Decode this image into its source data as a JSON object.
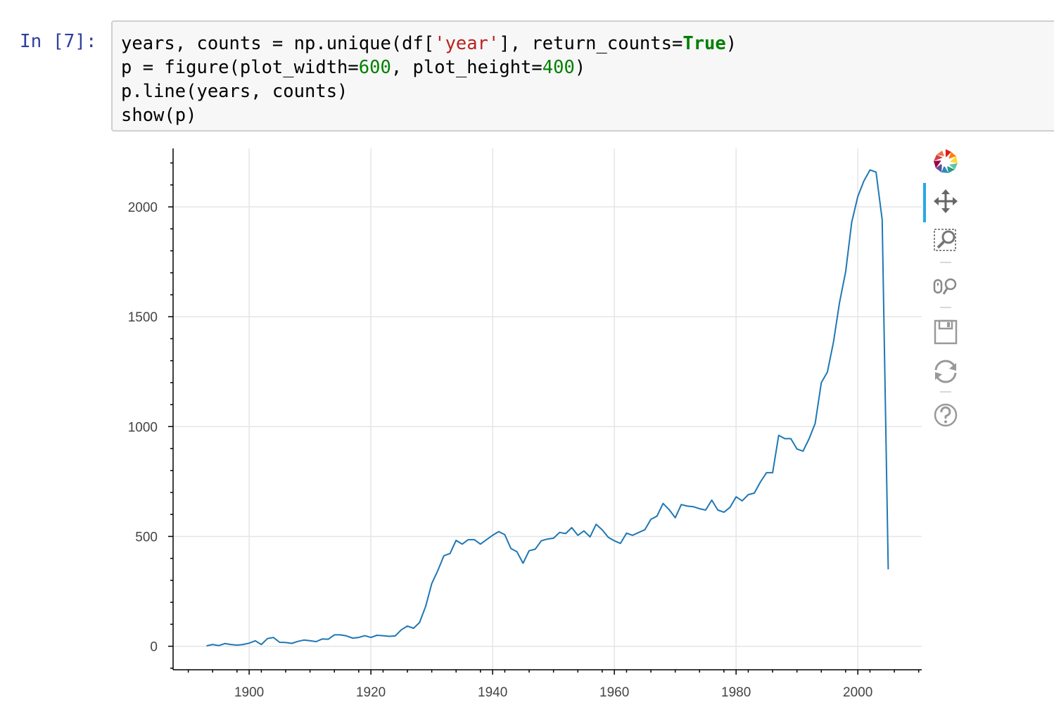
{
  "cell": {
    "prompt": "In [7]:",
    "code_lines": [
      [
        {
          "t": "years, counts = np.unique(df[",
          "c": ""
        },
        {
          "t": "'year'",
          "c": "str"
        },
        {
          "t": "], return_counts=",
          "c": ""
        },
        {
          "t": "True",
          "c": "kw"
        },
        {
          "t": ")",
          "c": ""
        }
      ],
      [
        {
          "t": "p = figure(plot_width=",
          "c": ""
        },
        {
          "t": "600",
          "c": "num"
        },
        {
          "t": ", plot_height=",
          "c": ""
        },
        {
          "t": "400",
          "c": "num"
        },
        {
          "t": ")",
          "c": ""
        }
      ],
      [
        {
          "t": "p.line(years, counts)",
          "c": ""
        }
      ],
      [
        {
          "t": "show(p)",
          "c": ""
        }
      ]
    ]
  },
  "toolbar": {
    "tools": [
      {
        "name": "bokeh-logo-icon"
      },
      {
        "name": "pan-tool-icon",
        "active": true
      },
      {
        "name": "box-zoom-tool-icon"
      },
      {
        "name": "wheel-zoom-tool-icon"
      },
      {
        "name": "save-tool-icon"
      },
      {
        "name": "reset-tool-icon"
      },
      {
        "name": "help-tool-icon"
      }
    ],
    "active_color": "#26aae1"
  },
  "chart_data": {
    "type": "line",
    "title": "",
    "xlabel": "",
    "ylabel": "",
    "xlim": [
      1887.5,
      2010.5
    ],
    "ylim": [
      -107,
      2266
    ],
    "x_ticks": [
      1900,
      1920,
      1940,
      1960,
      1980,
      2000
    ],
    "y_ticks": [
      0,
      500,
      1000,
      1500,
      2000
    ],
    "grid": true,
    "line_color": "#1f77b4",
    "series": [
      {
        "x": [
          1893,
          1894,
          1895,
          1896,
          1897,
          1898,
          1899,
          1900,
          1901,
          1902,
          1903,
          1904,
          1905,
          1906,
          1907,
          1908,
          1909,
          1910,
          1911,
          1912,
          1913,
          1914,
          1915,
          1916,
          1917,
          1918,
          1919,
          1920,
          1921,
          1922,
          1923,
          1924,
          1925,
          1926,
          1927,
          1928,
          1929,
          1930,
          1931,
          1932,
          1933,
          1934,
          1935,
          1936,
          1937,
          1938,
          1939,
          1940,
          1941,
          1942,
          1943,
          1944,
          1945,
          1946,
          1947,
          1948,
          1949,
          1950,
          1951,
          1952,
          1953,
          1954,
          1955,
          1956,
          1957,
          1958,
          1959,
          1960,
          1961,
          1962,
          1963,
          1964,
          1965,
          1966,
          1967,
          1968,
          1969,
          1970,
          1971,
          1972,
          1973,
          1974,
          1975,
          1976,
          1977,
          1978,
          1979,
          1980,
          1981,
          1982,
          1983,
          1984,
          1985,
          1986,
          1987,
          1988,
          1989,
          1990,
          1991,
          1992,
          1993,
          1994,
          1995,
          1996,
          1997,
          1998,
          1999,
          2000,
          2001,
          2002,
          2003,
          2004,
          2005
        ],
        "y": [
          2,
          8,
          3,
          12,
          8,
          5,
          8,
          14,
          25,
          8,
          35,
          40,
          18,
          17,
          13,
          22,
          28,
          25,
          21,
          33,
          32,
          52,
          52,
          47,
          37,
          40,
          48,
          40,
          50,
          48,
          45,
          47,
          75,
          92,
          82,
          108,
          182,
          285,
          345,
          412,
          422,
          482,
          465,
          485,
          485,
          465,
          485,
          505,
          522,
          508,
          445,
          430,
          378,
          435,
          442,
          480,
          488,
          492,
          518,
          513,
          540,
          505,
          525,
          498,
          555,
          530,
          496,
          480,
          468,
          515,
          505,
          518,
          530,
          578,
          592,
          650,
          622,
          585,
          645,
          638,
          635,
          626,
          620,
          665,
          620,
          610,
          632,
          680,
          662,
          690,
          697,
          748,
          790,
          790,
          960,
          945,
          945,
          898,
          888,
          945,
          1015,
          1200,
          1248,
          1385,
          1565,
          1705,
          1930,
          2048,
          2118,
          2168,
          2158,
          1942,
          350
        ]
      }
    ]
  }
}
